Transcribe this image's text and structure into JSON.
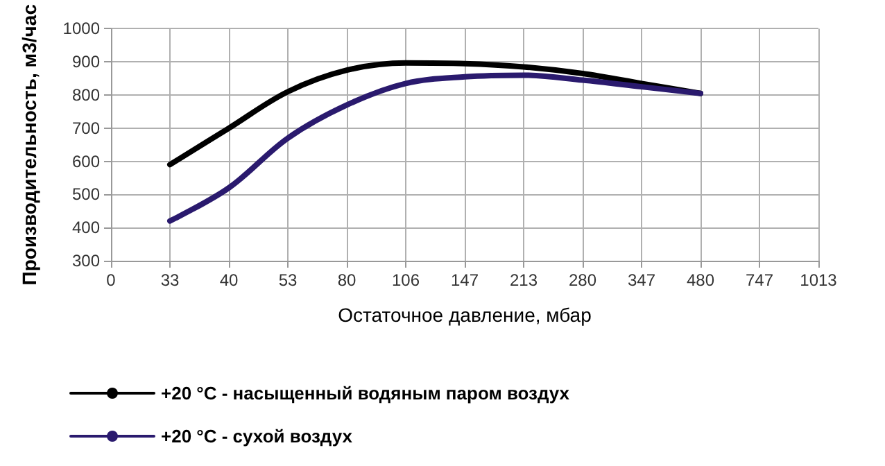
{
  "chart_data": {
    "type": "line",
    "xlabel": "Остаточное давление, мбар",
    "ylabel": "Производительность, м3/час",
    "categories": [
      "0",
      "33",
      "40",
      "53",
      "80",
      "106",
      "147",
      "213",
      "280",
      "347",
      "480",
      "747",
      "1013"
    ],
    "series": [
      {
        "name": "+20 °C - насыщенный водяным паром воздух",
        "color": "#000000",
        "values": [
          null,
          590,
          700,
          810,
          875,
          897,
          895,
          885,
          865,
          835,
          805,
          null,
          null
        ]
      },
      {
        "name": "+20 °C - сухой воздух",
        "color": "#2a1a6e",
        "values": [
          null,
          420,
          520,
          670,
          770,
          835,
          855,
          860,
          845,
          825,
          805,
          null,
          null
        ]
      }
    ],
    "ylim": [
      300,
      1000
    ],
    "yticks": [
      300,
      400,
      500,
      600,
      700,
      800,
      900,
      1000
    ],
    "grid": true,
    "legend": "bottom",
    "marker": "none",
    "line_style": "solid"
  }
}
